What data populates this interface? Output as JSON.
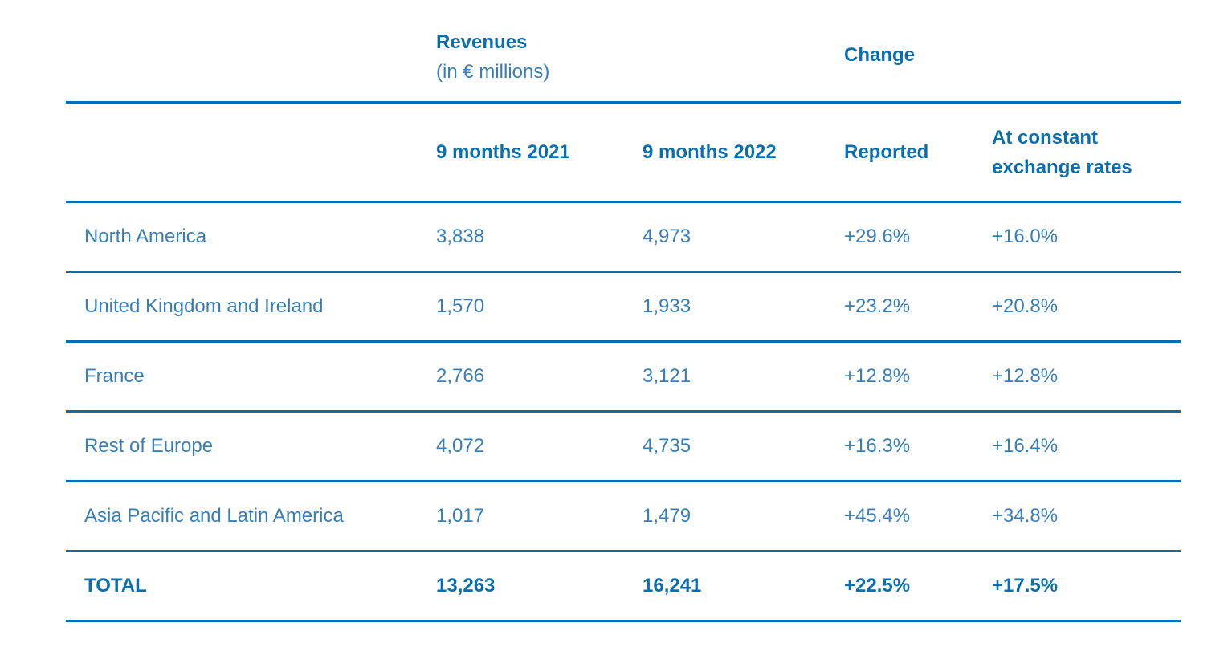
{
  "colors": {
    "accent_dark": "#0c6fad",
    "text_light": "#387eb8",
    "rule": "#0c6dac",
    "background": "#ffffff"
  },
  "table": {
    "group_header": {
      "revenues_title": "Revenues",
      "revenues_unit": "(in € millions)",
      "change_title": "Change"
    },
    "column_headers": {
      "period_2021": "9 months 2021",
      "period_2022": "9 months 2022",
      "reported": "Reported",
      "constant_rates": "At constant exchange rates"
    },
    "rows": [
      {
        "region": "North America",
        "m2021": "3,838",
        "m2022": "4,973",
        "reported": "+29.6%",
        "constant": "+16.0%"
      },
      {
        "region": "United Kingdom and Ireland",
        "m2021": "1,570",
        "m2022": "1,933",
        "reported": "+23.2%",
        "constant": "+20.8%"
      },
      {
        "region": "France",
        "m2021": "2,766",
        "m2022": "3,121",
        "reported": "+12.8%",
        "constant": "+12.8%"
      },
      {
        "region": "Rest of Europe",
        "m2021": "4,072",
        "m2022": "4,735",
        "reported": "+16.3%",
        "constant": "+16.4%"
      },
      {
        "region": "Asia Pacific and Latin America",
        "m2021": "1,017",
        "m2022": "1,479",
        "reported": "+45.4%",
        "constant": "+34.8%"
      }
    ],
    "total": {
      "region": "TOTAL",
      "m2021": "13,263",
      "m2022": "16,241",
      "reported": "+22.5%",
      "constant": "+17.5%"
    }
  }
}
